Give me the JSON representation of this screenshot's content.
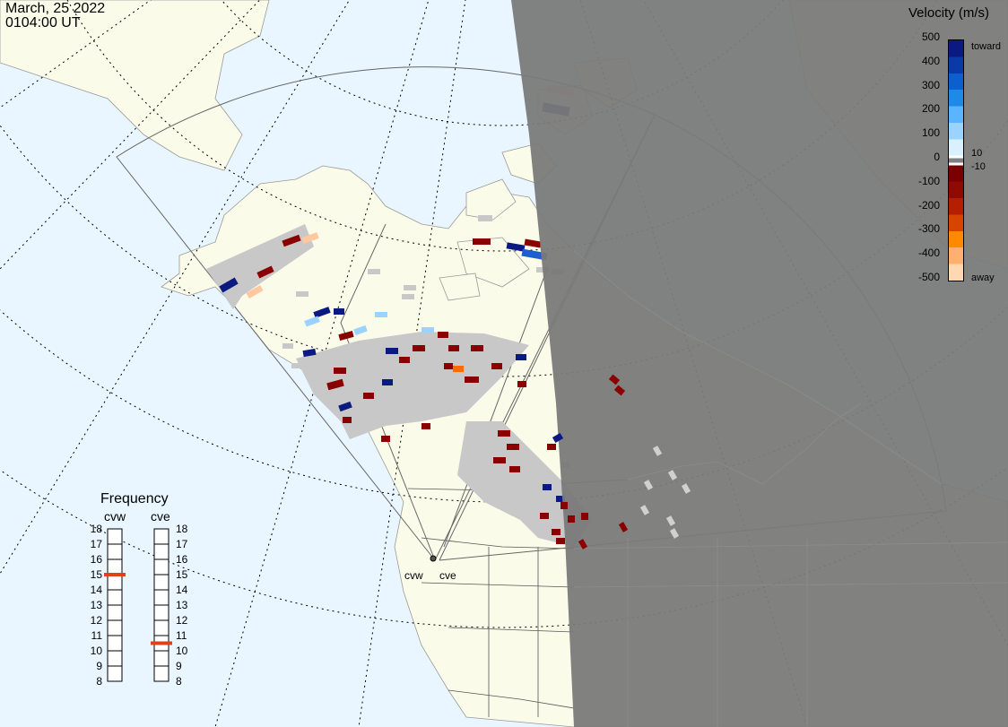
{
  "header": {
    "date": "March, 25 2022",
    "time": "0104:00 UT"
  },
  "velocity_scale": {
    "title": "Velocity (m/s)",
    "ticks": [
      "500",
      "400",
      "300",
      "200",
      "100",
      "0",
      "-100",
      "-200",
      "-300",
      "-400",
      "-500"
    ],
    "extra_labels": {
      "toward": "toward",
      "away": "away",
      "plus10": "10",
      "minus10": "-10"
    },
    "colors_toward": [
      "#d9f0ff",
      "#9ad3ff",
      "#5ab4ff",
      "#1e8ae6",
      "#0d5fcf",
      "#0a3aa5",
      "#0a1a80"
    ],
    "colors_away": [
      "#7a0000",
      "#8f0a00",
      "#b51e00",
      "#d94300",
      "#ff8a00",
      "#ffb070",
      "#ffd8b0"
    ]
  },
  "frequency": {
    "title": "Frequency",
    "radars": [
      {
        "name": "cvw",
        "freq_mhz": 15.0
      },
      {
        "name": "cve",
        "freq_mhz": 10.5
      }
    ],
    "ticks": [
      "18",
      "17",
      "16",
      "15",
      "14",
      "13",
      "12",
      "11",
      "10",
      "9",
      "8"
    ]
  },
  "radar_sites": {
    "cvw": "cvw",
    "cve": "cve"
  },
  "map": {
    "ocean_color": "#e9f6ff",
    "land_color": "#fbfbea",
    "night_color": "#7a7a7a",
    "grid_color": "#000000"
  }
}
